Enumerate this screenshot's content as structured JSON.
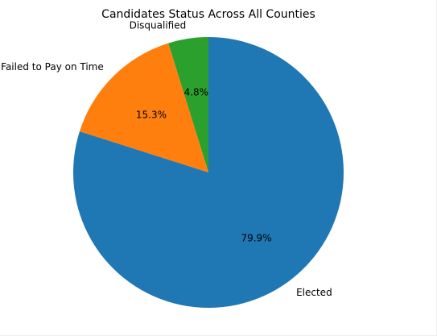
{
  "chart_data": {
    "type": "pie",
    "title": "Candidates Status Across All Counties",
    "slices": [
      {
        "label": "Disqualified",
        "value": 4.8,
        "pct_label": "4.8%",
        "color": "#2ca02c"
      },
      {
        "label": "Failed to Pay on Time",
        "value": 15.3,
        "pct_label": "15.3%",
        "color": "#ff7f0e"
      },
      {
        "label": "Elected",
        "value": 79.9,
        "pct_label": "79.9%",
        "color": "#1f77b4"
      }
    ],
    "start_angle_deg": 90,
    "direction": "counterclockwise",
    "legend": "none"
  }
}
